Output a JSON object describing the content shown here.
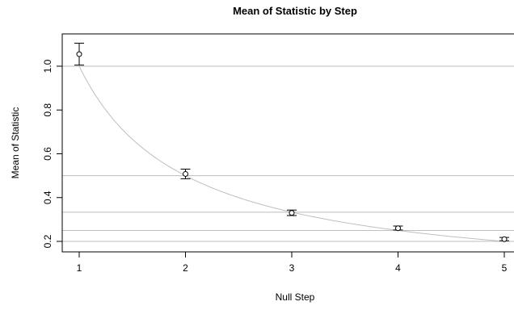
{
  "chart_data": {
    "type": "scatter",
    "title": "Mean of Statistic by Step",
    "xlabel": "Null Step",
    "ylabel": "Mean of Statistic",
    "xlim": [
      1,
      5
    ],
    "ylim": [
      0.2,
      1.1
    ],
    "x_ticks": [
      "1",
      "2",
      "3",
      "4",
      "5"
    ],
    "y_ticks": [
      "0.2",
      "0.4",
      "0.6",
      "0.8",
      "1.0"
    ],
    "points": [
      {
        "x": 1,
        "y": 1.055,
        "lower": 1.005,
        "upper": 1.105
      },
      {
        "x": 2,
        "y": 0.508,
        "lower": 0.486,
        "upper": 0.53
      },
      {
        "x": 3,
        "y": 0.33,
        "lower": 0.318,
        "upper": 0.343
      },
      {
        "x": 4,
        "y": 0.26,
        "lower": 0.252,
        "upper": 0.27
      },
      {
        "x": 5,
        "y": 0.21,
        "lower": 0.203,
        "upper": 0.218
      }
    ],
    "reference_lines": [
      1.0,
      0.5,
      0.3333,
      0.25,
      0.2
    ],
    "curve": "y = 1/x",
    "grid": false,
    "colors": {
      "points": "#000000",
      "reference": "#bebebe",
      "curve": "#bebebe"
    }
  }
}
